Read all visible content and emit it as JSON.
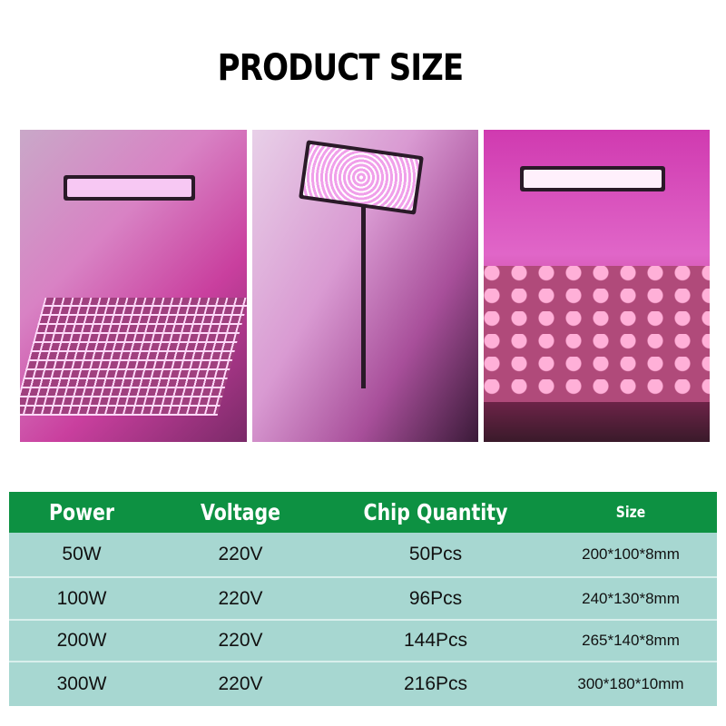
{
  "title": "PRODUCT SIZE",
  "photos": [
    "grow-light-over-seedling-tray",
    "grow-light-on-stand-over-plants",
    "grow-light-in-tent-over-seedlings"
  ],
  "table": {
    "headers": [
      "Power",
      "Voltage",
      "Chip Quantity",
      "Size"
    ],
    "rows": [
      [
        "50W",
        "220V",
        "50Pcs",
        "200*100*8mm"
      ],
      [
        "100W",
        "220V",
        "96Pcs",
        "240*130*8mm"
      ],
      [
        "200W",
        "220V",
        "144Pcs",
        "265*140*8mm"
      ],
      [
        "300W",
        "220V",
        "216Pcs",
        "300*180*10mm"
      ]
    ]
  },
  "colors": {
    "header_bg": "#0d9142",
    "row_bg": "#a7d7d1",
    "header_text": "#ffffff"
  }
}
